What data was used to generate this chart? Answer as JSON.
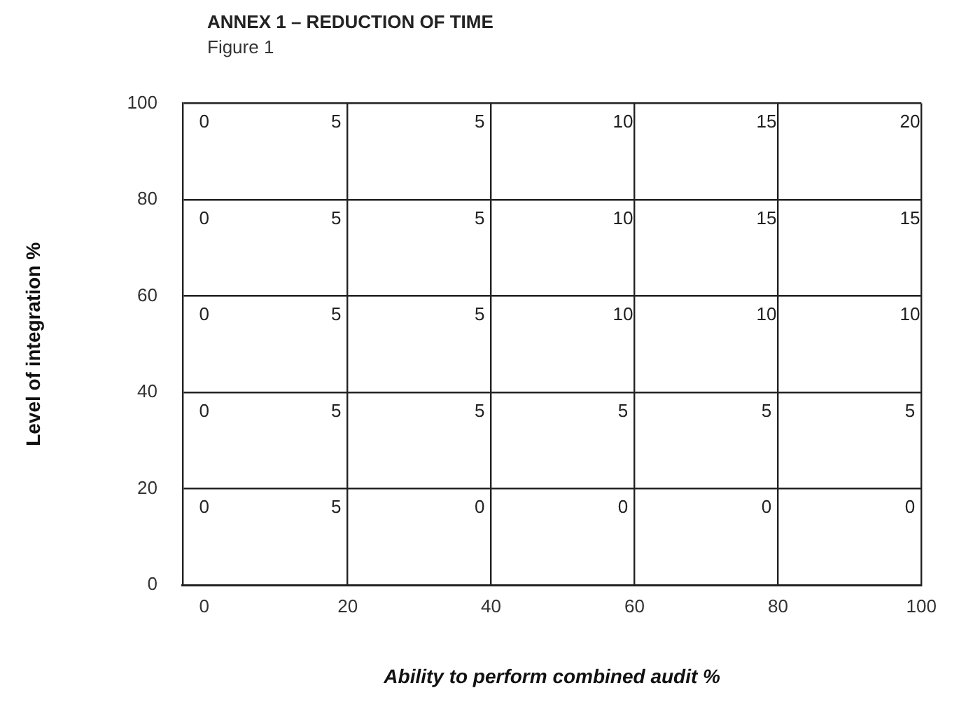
{
  "chart_data": {
    "type": "heatmap",
    "title": "ANNEX 1 – REDUCTION OF TIME",
    "subtitle": "Figure 1",
    "xlabel": "Ability to perform combined audit %",
    "ylabel": "Level of integration %",
    "categories": [
      "0",
      "20",
      "40",
      "60",
      "80",
      "100"
    ],
    "y_categories": [
      "100",
      "80",
      "60",
      "40",
      "20",
      "0"
    ],
    "cells": [
      [
        0,
        5,
        5,
        10,
        15,
        20
      ],
      [
        0,
        5,
        5,
        10,
        15,
        15
      ],
      [
        0,
        5,
        5,
        10,
        10,
        10
      ],
      [
        0,
        5,
        5,
        5,
        5,
        5
      ],
      [
        0,
        5,
        0,
        0,
        0,
        0
      ],
      [
        null,
        null,
        null,
        null,
        null,
        null
      ]
    ],
    "data_labels": true,
    "grid": true
  }
}
